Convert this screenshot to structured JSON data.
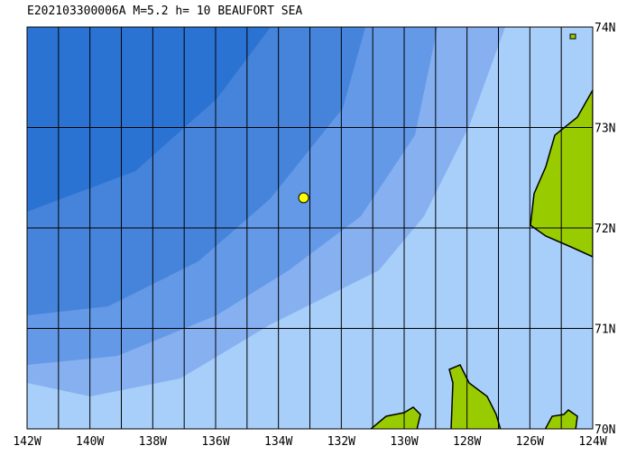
{
  "title": "E202103300006A M=5.2 h= 10 BEAUFORT SEA",
  "map": {
    "xlim": [
      -142,
      -124
    ],
    "ylim": [
      70,
      74
    ],
    "xticks": [
      {
        "value": -142,
        "label": "142W"
      },
      {
        "value": -140,
        "label": "140W"
      },
      {
        "value": -138,
        "label": "138W"
      },
      {
        "value": -136,
        "label": "136W"
      },
      {
        "value": -134,
        "label": "134W"
      },
      {
        "value": -132,
        "label": "132W"
      },
      {
        "value": -130,
        "label": "130W"
      },
      {
        "value": -128,
        "label": "128W"
      },
      {
        "value": -126,
        "label": "126W"
      },
      {
        "value": -124,
        "label": "124W"
      }
    ],
    "yticks": [
      {
        "value": 70,
        "label": "70N"
      },
      {
        "value": 71,
        "label": "71N"
      },
      {
        "value": 72,
        "label": "72N"
      },
      {
        "value": 73,
        "label": "73N"
      },
      {
        "value": 74,
        "label": "74N"
      }
    ],
    "epicenter": {
      "lon": -133.2,
      "lat": 72.3,
      "color": "#ffff00"
    }
  }
}
